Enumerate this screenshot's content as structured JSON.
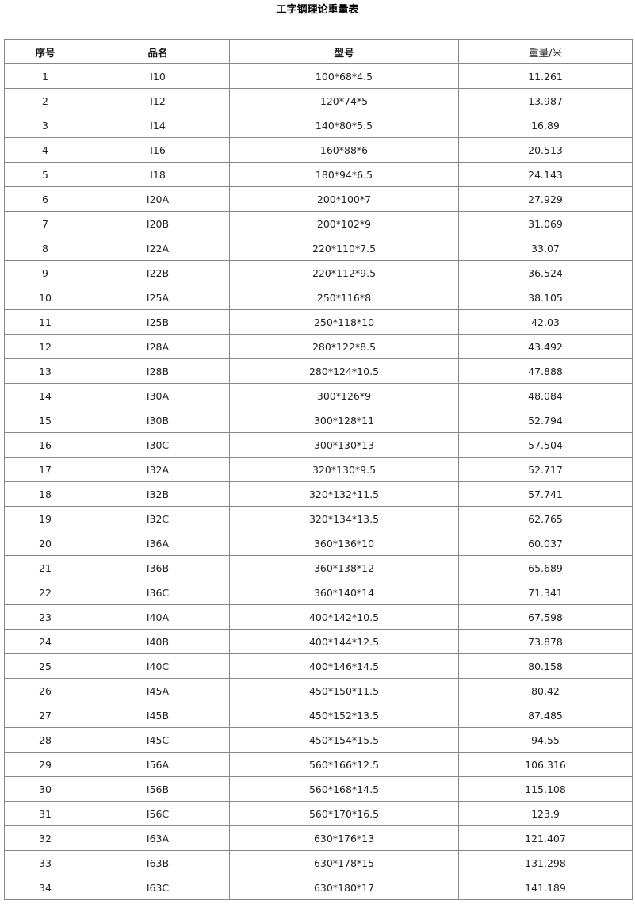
{
  "title": "工字钢理论重量表",
  "headers": [
    "序号",
    "品名",
    "型号",
    "重量/米"
  ],
  "rows": [
    [
      "1",
      "I10",
      "100*68*4.5",
      "11.261"
    ],
    [
      "2",
      "I12",
      "120*74*5",
      "13.987"
    ],
    [
      "3",
      "I14",
      "140*80*5.5",
      "16.89"
    ],
    [
      "4",
      "I16",
      "160*88*6",
      "20.513"
    ],
    [
      "5",
      "I18",
      "180*94*6.5",
      "24.143"
    ],
    [
      "6",
      "I20A",
      "200*100*7",
      "27.929"
    ],
    [
      "7",
      "I20B",
      "200*102*9",
      "31.069"
    ],
    [
      "8",
      "I22A",
      "220*110*7.5",
      "33.07"
    ],
    [
      "9",
      "I22B",
      "220*112*9.5",
      "36.524"
    ],
    [
      "10",
      "I25A",
      "250*116*8",
      "38.105"
    ],
    [
      "11",
      "I25B",
      "250*118*10",
      "42.03"
    ],
    [
      "12",
      "I28A",
      "280*122*8.5",
      "43.492"
    ],
    [
      "13",
      "I28B",
      "280*124*10.5",
      "47.888"
    ],
    [
      "14",
      "I30A",
      "300*126*9",
      "48.084"
    ],
    [
      "15",
      "I30B",
      "300*128*11",
      "52.794"
    ],
    [
      "16",
      "I30C",
      "300*130*13",
      "57.504"
    ],
    [
      "17",
      "I32A",
      "320*130*9.5",
      "52.717"
    ],
    [
      "18",
      "I32B",
      "320*132*11.5",
      "57.741"
    ],
    [
      "19",
      "I32C",
      "320*134*13.5",
      "62.765"
    ],
    [
      "20",
      "I36A",
      "360*136*10",
      "60.037"
    ],
    [
      "21",
      "I36B",
      "360*138*12",
      "65.689"
    ],
    [
      "22",
      "I36C",
      "360*140*14",
      "71.341"
    ],
    [
      "23",
      "I40A",
      "400*142*10.5",
      "67.598"
    ],
    [
      "24",
      "I40B",
      "400*144*12.5",
      "73.878"
    ],
    [
      "25",
      "I40C",
      "400*146*14.5",
      "80.158"
    ],
    [
      "26",
      "I45A",
      "450*150*11.5",
      "80.42"
    ],
    [
      "27",
      "I45B",
      "450*152*13.5",
      "87.485"
    ],
    [
      "28",
      "I45C",
      "450*154*15.5",
      "94.55"
    ],
    [
      "29",
      "I56A",
      "560*166*12.5",
      "106.316"
    ],
    [
      "30",
      "I56B",
      "560*168*14.5",
      "115.108"
    ],
    [
      "31",
      "I56C",
      "560*170*16.5",
      "123.9"
    ],
    [
      "32",
      "I63A",
      "630*176*13",
      "121.407"
    ],
    [
      "33",
      "I63B",
      "630*178*15",
      "131.298"
    ],
    [
      "34",
      "I63C",
      "630*180*17",
      "141.189"
    ]
  ]
}
